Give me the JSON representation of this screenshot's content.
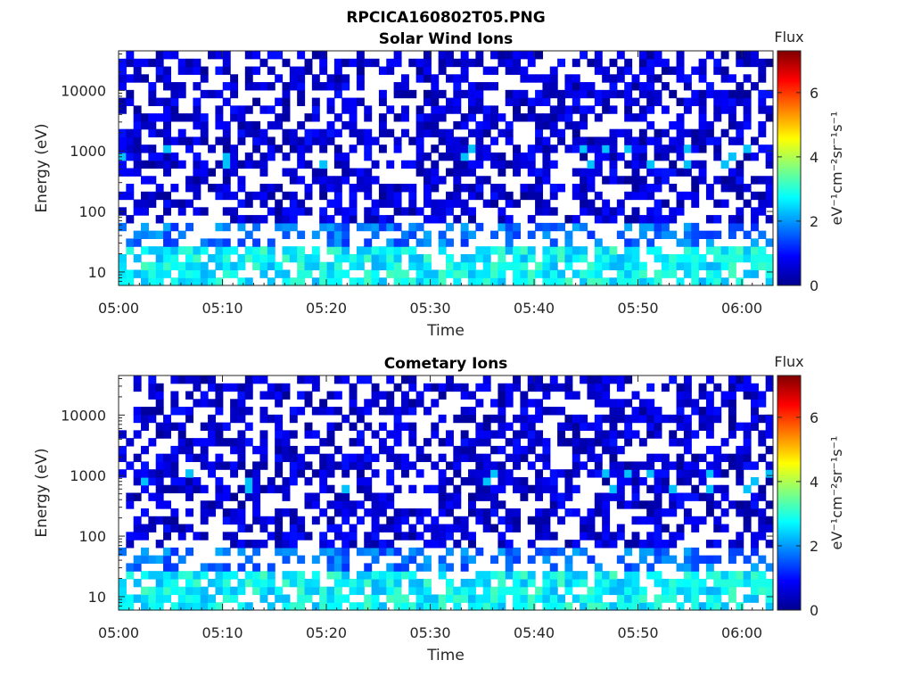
{
  "figure": {
    "title": "RPCICA160802T05.PNG"
  },
  "chart_data": [
    {
      "type": "heatmap",
      "title": "Solar Wind Ions",
      "xlabel": "Time",
      "ylabel": "Energy (eV)",
      "yscale": "log",
      "xlim": [
        "05:00",
        "06:03"
      ],
      "ylim": [
        6,
        45000
      ],
      "x_ticks": [
        "05:00",
        "05:10",
        "05:20",
        "05:30",
        "05:40",
        "05:50",
        "06:00"
      ],
      "y_ticks": [
        "10",
        "100",
        "1000",
        "10000"
      ],
      "colorbar": {
        "label": "Flux",
        "unit": "eV⁻¹cm⁻²sr⁻¹s⁻¹",
        "range": [
          0,
          7.3
        ],
        "ticks": [
          "0",
          "2",
          "4",
          "6"
        ],
        "colormap": "jet"
      },
      "pattern": {
        "seed": 11,
        "high_energy_band": {
          "energy_range_eV": [
            60,
            45000
          ],
          "dominant_flux": 0.5,
          "occupancy": 0.55
        },
        "mid_energy_band": {
          "energy_range_eV": [
            30,
            1000
          ],
          "dominant_flux": 1.6,
          "occupancy": 0.45
        },
        "low_energy_band": {
          "energy_range_eV": [
            6,
            30
          ],
          "dominant_flux": 2.6,
          "occupancy": 0.7
        }
      }
    },
    {
      "type": "heatmap",
      "title": "Cometary Ions",
      "xlabel": "Time",
      "ylabel": "Energy (eV)",
      "yscale": "log",
      "xlim": [
        "05:00",
        "06:03"
      ],
      "ylim": [
        6,
        45000
      ],
      "x_ticks": [
        "05:00",
        "05:10",
        "05:20",
        "05:30",
        "05:40",
        "05:50",
        "06:00"
      ],
      "y_ticks": [
        "10",
        "100",
        "1000",
        "10000"
      ],
      "colorbar": {
        "label": "Flux",
        "unit": "eV⁻¹cm⁻²sr⁻¹s⁻¹",
        "range": [
          0,
          7.3
        ],
        "ticks": [
          "0",
          "2",
          "4",
          "6"
        ],
        "colormap": "jet"
      },
      "pattern": {
        "seed": 11,
        "high_energy_band": {
          "energy_range_eV": [
            60,
            45000
          ],
          "dominant_flux": 0.5,
          "occupancy": 0.55
        },
        "mid_energy_band": {
          "energy_range_eV": [
            30,
            1000
          ],
          "dominant_flux": 1.6,
          "occupancy": 0.45
        },
        "low_energy_band": {
          "energy_range_eV": [
            6,
            30
          ],
          "dominant_flux": 2.6,
          "occupancy": 0.7
        }
      }
    }
  ]
}
